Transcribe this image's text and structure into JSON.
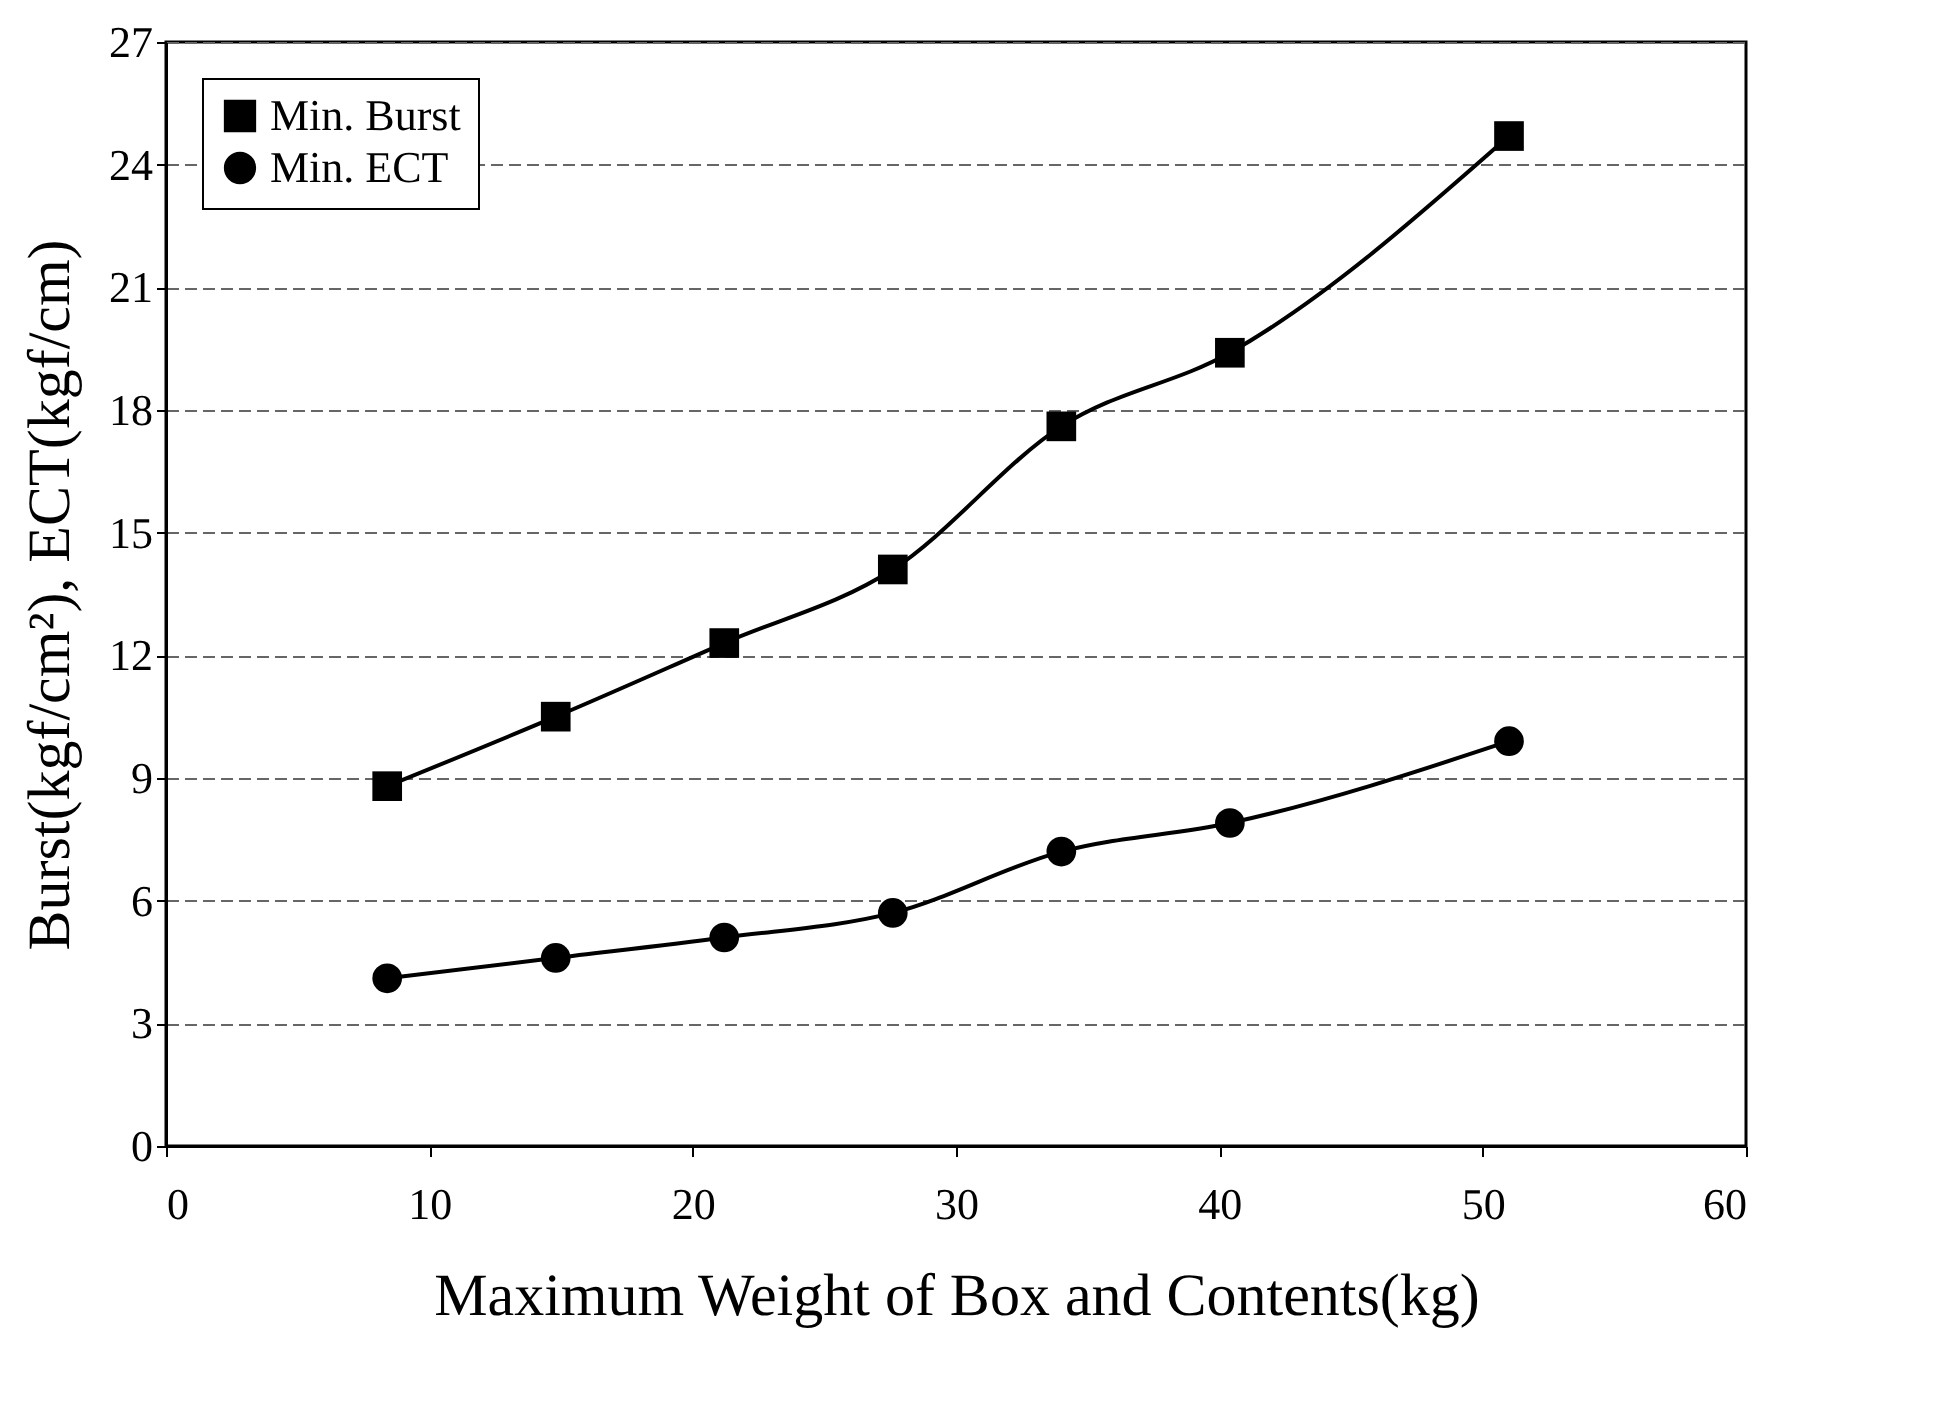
{
  "chart_data": {
    "type": "line",
    "xlabel": "Maximum Weight of Box and Contents(kg)",
    "ylabel": "Burst(kgf/cm²), ECT(kgf/cm)",
    "x": [
      8.4,
      14.8,
      21.2,
      27.6,
      34.0,
      40.4,
      51.0
    ],
    "series": [
      {
        "name": "Min. Burst",
        "color": "#000000",
        "marker": "square",
        "values": [
          8.8,
          10.5,
          12.3,
          14.1,
          17.6,
          19.4,
          24.7
        ]
      },
      {
        "name": "Min. ECT",
        "color": "#000000",
        "marker": "circle",
        "values": [
          4.1,
          4.6,
          5.1,
          5.7,
          7.2,
          7.9,
          9.9
        ]
      }
    ],
    "xlim": [
      0,
      60
    ],
    "xticks": [
      0,
      10,
      20,
      30,
      40,
      50,
      60
    ],
    "ylim": [
      0,
      27
    ],
    "yticks": [
      0,
      3,
      6,
      9,
      12,
      15,
      18,
      21,
      24,
      27
    ],
    "grid": "y",
    "legend": "top left",
    "line_style": "solid"
  }
}
